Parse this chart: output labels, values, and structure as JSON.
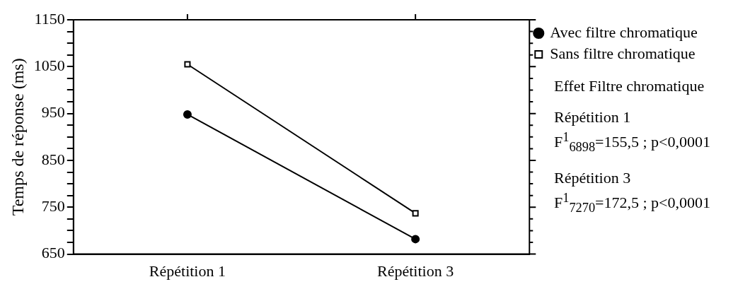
{
  "chart_data": {
    "type": "line",
    "ylabel": "Temps de réponse (ms)",
    "categories": [
      "Répétition 1",
      "Répétition 3"
    ],
    "series": [
      {
        "name": "Avec filtre chromatique",
        "color": "#000000",
        "marker": "circle",
        "values": [
          948,
          682
        ]
      },
      {
        "name": "Sans filtre chromatique",
        "color": "#000000",
        "marker": "square",
        "values": [
          1055,
          737
        ]
      }
    ],
    "ylim": [
      650,
      1150
    ],
    "yticks": [
      650,
      {
        "value": 675,
        "label": null
      },
      {
        "value": 700,
        "label": null
      },
      {
        "value": 725,
        "label": null
      },
      750,
      {
        "value": 775,
        "label": null
      },
      {
        "value": 800,
        "label": null
      },
      {
        "value": 825,
        "label": null
      },
      850,
      {
        "value": 875,
        "label": null
      },
      {
        "value": 900,
        "label": null
      },
      {
        "value": 925,
        "label": null
      },
      950,
      {
        "value": 975,
        "label": null
      },
      {
        "value": 1000,
        "label": null
      },
      {
        "value": 1025,
        "label": null
      },
      1050,
      {
        "value": 1075,
        "label": null
      },
      {
        "value": 1100,
        "label": null
      },
      {
        "value": 1125,
        "label": null
      },
      1150
    ],
    "grid": false,
    "legend": "top right",
    "line_style": "solid",
    "annotations": [
      "Effet Filtre chromatique",
      "Répétition 1\nF$^{1}$$_{6898}$=155,5 ; p<0,0001",
      "Répétition 3\nF$^{1}$$_{7270}$=172,5 ; p<0,0001"
    ]
  }
}
